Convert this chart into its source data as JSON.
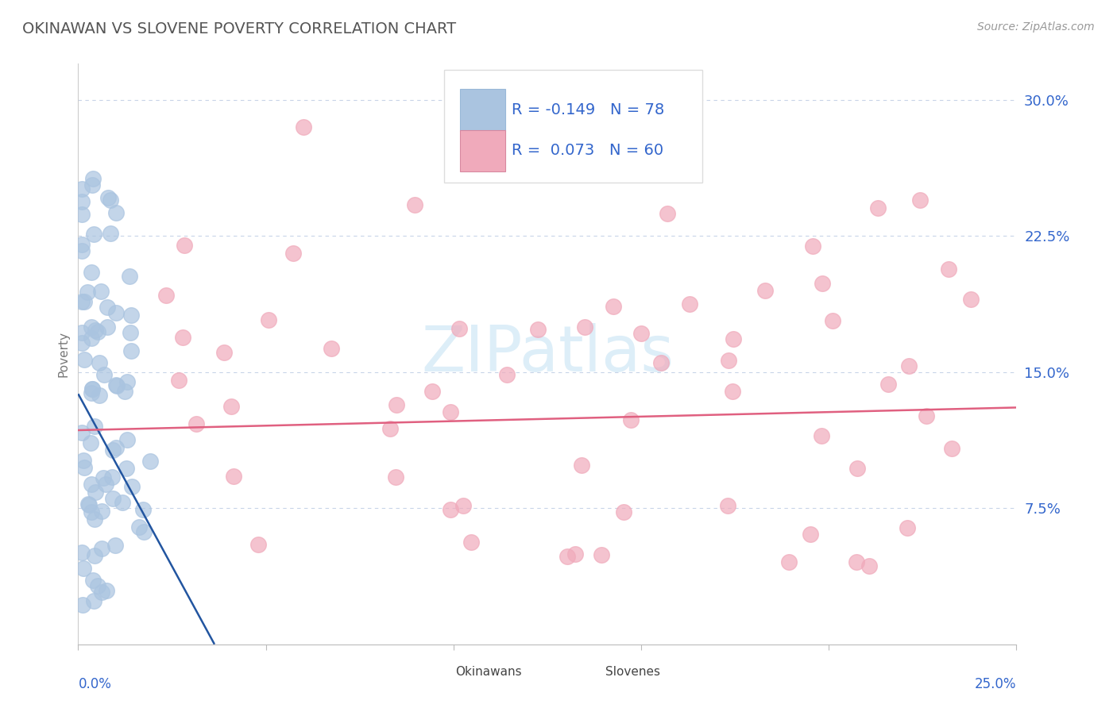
{
  "title": "OKINAWAN VS SLOVENE POVERTY CORRELATION CHART",
  "source": "Source: ZipAtlas.com",
  "ylabel": "Poverty",
  "xlim": [
    0,
    0.25
  ],
  "ylim": [
    0.0,
    0.32
  ],
  "yticks": [
    0.0,
    0.075,
    0.15,
    0.225,
    0.3
  ],
  "ytick_labels": [
    "",
    "7.5%",
    "15.0%",
    "22.5%",
    "30.0%"
  ],
  "r_okinawan": -0.149,
  "n_okinawan": 78,
  "r_slovene": 0.073,
  "n_slovene": 60,
  "okinawan_color": "#aac4e0",
  "slovene_color": "#f0aabb",
  "okinawan_line_color": "#2255a0",
  "slovene_line_color": "#e06080",
  "watermark_color": "#ddeef8",
  "background_color": "#ffffff",
  "grid_color": "#c8d4e8",
  "legend_color": "#3366cc",
  "title_color": "#555555",
  "source_color": "#999999",
  "ylabel_color": "#777777",
  "ok_slope": -3.8,
  "ok_intercept": 0.138,
  "sl_slope": 0.05,
  "sl_intercept": 0.118
}
